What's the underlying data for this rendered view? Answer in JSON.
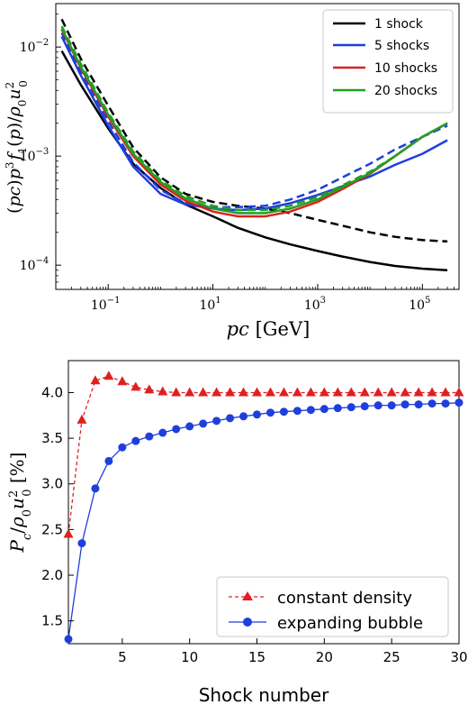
{
  "chart_data": [
    {
      "type": "line",
      "xscale": "log",
      "yscale": "log",
      "xlim": [
        0.01,
        500000
      ],
      "ylim": [
        6e-05,
        0.025
      ],
      "xlabel": "pc [GeV]",
      "ylabel": "(pc)p³ f₁(p)/ρ₀u₀²",
      "xticks": [
        {
          "value": 0.1,
          "base": "10",
          "exp": "−1"
        },
        {
          "value": 10,
          "base": "10",
          "exp": "1"
        },
        {
          "value": 1000,
          "base": "10",
          "exp": "3"
        },
        {
          "value": 100000,
          "base": "10",
          "exp": "5"
        }
      ],
      "yticks": [
        {
          "value": 0.0001,
          "base": "10",
          "exp": "−4"
        },
        {
          "value": 0.001,
          "base": "10",
          "exp": "−3"
        },
        {
          "value": 0.01,
          "base": "10",
          "exp": "−2"
        }
      ],
      "legend_position": "top-right",
      "series": [
        {
          "name": "1 shock",
          "color": "#000000",
          "style": "solid",
          "legend": true,
          "x": [
            0.013,
            0.03,
            0.1,
            0.3,
            1,
            3,
            10,
            30,
            100,
            300,
            1000,
            3000,
            10000,
            30000,
            100000,
            300000
          ],
          "y": [
            0.0092,
            0.0045,
            0.0018,
            0.00085,
            0.00051,
            0.00036,
            0.00028,
            0.00022,
            0.00018,
            0.000155,
            0.000135,
            0.00012,
            0.000107,
            9.85e-05,
            9.3e-05,
            9e-05
          ]
        },
        {
          "name": "1 shock (dashed)",
          "color": "#000000",
          "style": "dashed",
          "legend": false,
          "x": [
            0.013,
            0.03,
            0.1,
            0.3,
            1,
            3,
            10,
            30,
            100,
            300,
            1000,
            3000,
            10000,
            30000,
            100000,
            300000
          ],
          "y": [
            0.018,
            0.0078,
            0.0029,
            0.0012,
            0.00064,
            0.00045,
            0.00038,
            0.00035,
            0.00033,
            0.0003,
            0.00026,
            0.00023,
            0.0002,
            0.000182,
            0.00017,
            0.000165
          ]
        },
        {
          "name": "5 shocks",
          "color": "#1f3fdc",
          "style": "solid",
          "legend": true,
          "x": [
            0.013,
            0.03,
            0.1,
            0.3,
            1,
            3,
            10,
            30,
            100,
            300,
            1000,
            3000,
            10000,
            30000,
            100000,
            300000
          ],
          "y": [
            0.0125,
            0.0055,
            0.0019,
            0.0008,
            0.00045,
            0.00036,
            0.00033,
            0.00032,
            0.00033,
            0.00037,
            0.00044,
            0.00053,
            0.00065,
            0.00083,
            0.00105,
            0.0014
          ]
        },
        {
          "name": "5 shocks (dashed)",
          "color": "#1f3fdc",
          "style": "dashed",
          "legend": false,
          "x": [
            0.013,
            0.03,
            0.1,
            0.3,
            1,
            3,
            10,
            30,
            100,
            300,
            1000,
            3000,
            10000,
            30000,
            100000,
            300000
          ],
          "y": [
            0.0135,
            0.006,
            0.0021,
            0.00088,
            0.00049,
            0.00037,
            0.00034,
            0.00034,
            0.00035,
            0.0004,
            0.00049,
            0.00064,
            0.00085,
            0.00115,
            0.0015,
            0.0019
          ]
        },
        {
          "name": "10 shocks",
          "color": "#e02020",
          "style": "solid",
          "legend": true,
          "x": [
            0.013,
            0.03,
            0.1,
            0.3,
            1,
            3,
            10,
            30,
            100,
            300,
            1000,
            3000,
            10000,
            30000,
            100000,
            300000
          ],
          "y": [
            0.0145,
            0.0064,
            0.0023,
            0.001,
            0.00055,
            0.00039,
            0.00031,
            0.00028,
            0.00028,
            0.00031,
            0.00038,
            0.0005,
            0.00069,
            0.001,
            0.0015,
            0.002
          ]
        },
        {
          "name": "20 shocks",
          "color": "#22a022",
          "style": "solid",
          "legend": true,
          "x": [
            0.013,
            0.03,
            0.1,
            0.3,
            1,
            3,
            10,
            30,
            100,
            300,
            1000,
            3000,
            10000,
            30000,
            100000,
            300000
          ],
          "y": [
            0.0148,
            0.0066,
            0.0024,
            0.00105,
            0.00058,
            0.00041,
            0.00033,
            0.0003,
            0.0003,
            0.00033,
            0.0004,
            0.00052,
            0.0007,
            0.001,
            0.0015,
            0.002
          ]
        },
        {
          "name": "20 shocks (dashed)",
          "color": "#22a022",
          "style": "dashed",
          "legend": false,
          "x": [
            0.013,
            0.03,
            0.1,
            0.3,
            1,
            3,
            10,
            30,
            100,
            300,
            1000,
            3000,
            10000,
            30000,
            100000,
            300000
          ],
          "y": [
            0.0155,
            0.007,
            0.0025,
            0.0011,
            0.0006,
            0.00043,
            0.00035,
            0.00032,
            0.00032,
            0.00035,
            0.00042,
            0.00054,
            0.00072,
            0.001,
            0.0015,
            0.002
          ]
        }
      ]
    },
    {
      "type": "line",
      "xscale": "linear",
      "yscale": "linear",
      "xlim": [
        1,
        30
      ],
      "ylim": [
        1.25,
        4.35
      ],
      "xlabel": "Shock number",
      "ylabel": "P_c/ρ₀u₀² [%]",
      "xticks": [
        5,
        10,
        15,
        20,
        25,
        30
      ],
      "yticks": [
        1.5,
        2.0,
        2.5,
        3.0,
        3.5,
        4.0
      ],
      "legend_position": "bottom-right",
      "series": [
        {
          "name": "constant density",
          "color": "#e02020",
          "style": "dashed",
          "marker": "triangle",
          "x": [
            1,
            2,
            3,
            4,
            5,
            6,
            7,
            8,
            9,
            10,
            11,
            12,
            13,
            14,
            15,
            16,
            17,
            18,
            19,
            20,
            21,
            22,
            23,
            24,
            25,
            26,
            27,
            28,
            29,
            30
          ],
          "y": [
            2.45,
            3.7,
            4.13,
            4.18,
            4.12,
            4.06,
            4.03,
            4.01,
            4.0,
            4.0,
            4.0,
            4.0,
            4.0,
            4.0,
            4.0,
            4.0,
            4.0,
            4.0,
            4.0,
            4.0,
            4.0,
            4.0,
            4.0,
            4.0,
            4.0,
            4.0,
            4.0,
            4.0,
            4.0,
            4.0
          ]
        },
        {
          "name": "expanding bubble",
          "color": "#1f3fdc",
          "style": "solid",
          "marker": "circle",
          "x": [
            1,
            2,
            3,
            4,
            5,
            6,
            7,
            8,
            9,
            10,
            11,
            12,
            13,
            14,
            15,
            16,
            17,
            18,
            19,
            20,
            21,
            22,
            23,
            24,
            25,
            26,
            27,
            28,
            29,
            30
          ],
          "y": [
            1.3,
            2.35,
            2.95,
            3.25,
            3.4,
            3.47,
            3.52,
            3.56,
            3.6,
            3.63,
            3.66,
            3.69,
            3.72,
            3.74,
            3.76,
            3.78,
            3.79,
            3.8,
            3.81,
            3.82,
            3.83,
            3.84,
            3.85,
            3.86,
            3.86,
            3.87,
            3.87,
            3.88,
            3.88,
            3.89
          ]
        }
      ]
    }
  ]
}
